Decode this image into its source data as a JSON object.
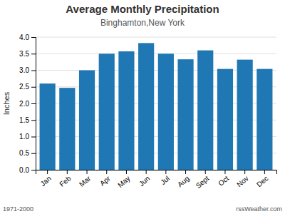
{
  "chart_data": {
    "type": "bar",
    "title": "Average Monthly Precipitation",
    "subtitle": "Binghamton,New York",
    "ylabel": "Inches",
    "categories": [
      "Jan",
      "Feb",
      "Mar",
      "Apr",
      "May",
      "Jun",
      "Jul",
      "Aug",
      "Sept",
      "Oct",
      "Nov",
      "Dec"
    ],
    "values": [
      2.6,
      2.47,
      3.0,
      3.5,
      3.57,
      3.82,
      3.5,
      3.33,
      3.6,
      3.04,
      3.32,
      3.04
    ],
    "ylim": [
      0.0,
      4.0
    ],
    "yticks": [
      {
        "value": 0.0,
        "label": "0.0"
      },
      0.5,
      {
        "value": 1.0,
        "label": "1.0"
      },
      1.5,
      {
        "value": 2.0,
        "label": "2.0"
      },
      2.5,
      {
        "value": 3.0,
        "label": "3.0"
      },
      3.5,
      {
        "value": 4.0,
        "label": "4.0"
      }
    ],
    "grid": true,
    "annotations": [
      "1971-2000",
      "rssWeather.com"
    ]
  }
}
